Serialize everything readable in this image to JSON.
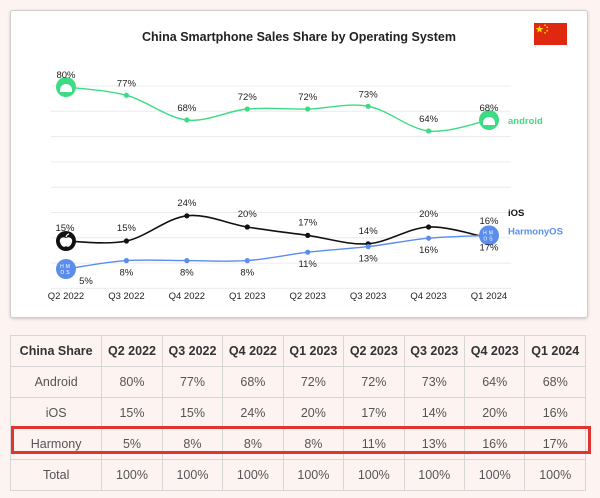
{
  "chart_data": {
    "type": "line",
    "title": "China Smartphone Sales Share by Operating System",
    "categories": [
      "Q2 2022",
      "Q3 2022",
      "Q4 2022",
      "Q1 2023",
      "Q2 2023",
      "Q3 2023",
      "Q4 2023",
      "Q1 2024"
    ],
    "ylim": [
      0,
      100
    ],
    "grid": true,
    "series": [
      {
        "name": "android",
        "values": [
          80,
          77,
          68,
          72,
          72,
          73,
          64,
          68
        ],
        "color": "#3ddc84"
      },
      {
        "name": "iOS",
        "values": [
          15,
          15,
          24,
          20,
          17,
          14,
          20,
          16
        ],
        "color": "#111111"
      },
      {
        "name": "HarmonyOS",
        "values": [
          5,
          8,
          8,
          8,
          11,
          13,
          16,
          17
        ],
        "color": "#5b8def"
      }
    ],
    "value_suffix": "%",
    "logo_text": {
      "harmony": "HMOS"
    }
  },
  "table": {
    "headers": [
      "China Share",
      "Q2 2022",
      "Q3 2022",
      "Q4 2022",
      "Q1 2023",
      "Q2 2023",
      "Q3 2023",
      "Q4 2023",
      "Q1 2024"
    ],
    "rows": [
      [
        "Android",
        "80%",
        "77%",
        "68%",
        "72%",
        "72%",
        "73%",
        "64%",
        "68%"
      ],
      [
        "iOS",
        "15%",
        "15%",
        "24%",
        "20%",
        "17%",
        "14%",
        "20%",
        "16%"
      ],
      [
        "Harmony",
        "5%",
        "8%",
        "8%",
        "8%",
        "11%",
        "13%",
        "16%",
        "17%"
      ],
      [
        "Total",
        "100%",
        "100%",
        "100%",
        "100%",
        "100%",
        "100%",
        "100%",
        "100%"
      ]
    ]
  },
  "colors": {
    "highlight": "#e0342f",
    "flag_red": "#de2910",
    "flag_star": "#ffde00"
  }
}
